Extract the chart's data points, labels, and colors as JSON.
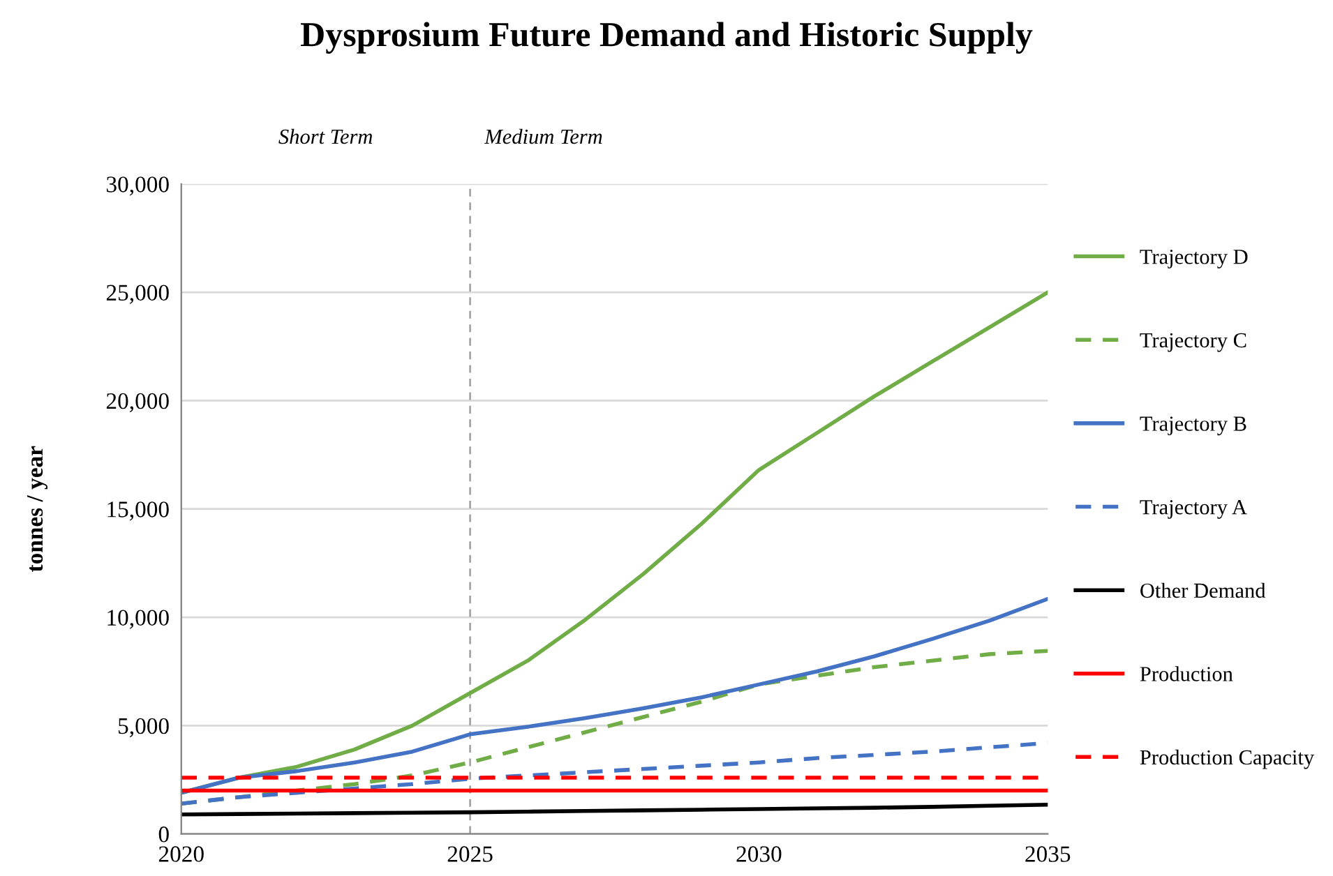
{
  "chart_data": {
    "type": "line",
    "title": "Dysprosium Future Demand and Historic Supply",
    "ylabel": "tonnes / year",
    "annotations": [
      "Short Term",
      "Medium Term"
    ],
    "x": [
      2020,
      2021,
      2022,
      2023,
      2024,
      2025,
      2026,
      2027,
      2028,
      2029,
      2030,
      2031,
      2032,
      2033,
      2034,
      2035
    ],
    "series": [
      {
        "name": "Trajectory D",
        "color": "#70ad47",
        "line_style": "solid",
        "values": [
          1900,
          2600,
          3100,
          3900,
          5000,
          6500,
          8000,
          9900,
          12000,
          14300,
          16800,
          18500,
          20200,
          21800,
          23400,
          25000
        ]
      },
      {
        "name": "Trajectory C",
        "color": "#70ad47",
        "line_style": "dashed",
        "values": [
          1400,
          1700,
          2000,
          2300,
          2700,
          3300,
          4000,
          4700,
          5400,
          6100,
          6900,
          7300,
          7700,
          8000,
          8300,
          8450
        ]
      },
      {
        "name": "Trajectory B",
        "color": "#4472c4",
        "line_style": "solid",
        "values": [
          1900,
          2600,
          2900,
          3300,
          3800,
          4600,
          4950,
          5350,
          5800,
          6300,
          6900,
          7500,
          8200,
          9000,
          9850,
          10850
        ]
      },
      {
        "name": "Trajectory A",
        "color": "#4472c4",
        "line_style": "dashed",
        "values": [
          1400,
          1700,
          1900,
          2100,
          2300,
          2550,
          2700,
          2850,
          3000,
          3150,
          3300,
          3500,
          3650,
          3800,
          4000,
          4200
        ]
      },
      {
        "name": "Other Demand",
        "color": "#000000",
        "line_style": "solid",
        "values": [
          900,
          920,
          940,
          960,
          980,
          1000,
          1030,
          1060,
          1090,
          1120,
          1150,
          1180,
          1210,
          1250,
          1300,
          1350
        ]
      },
      {
        "name": "Production",
        "color": "#ff0000",
        "line_style": "solid",
        "values": [
          2000,
          2000,
          2000,
          2000,
          2000,
          2000,
          2000,
          2000,
          2000,
          2000,
          2000,
          2000,
          2000,
          2000,
          2000,
          2000
        ]
      },
      {
        "name": "Production Capacity",
        "color": "#ff0000",
        "line_style": "dashed",
        "values": [
          2600,
          2600,
          2600,
          2600,
          2600,
          2600,
          2600,
          2600,
          2600,
          2600,
          2600,
          2600,
          2600,
          2600,
          2600,
          2600
        ]
      }
    ],
    "ref_lines": [
      {
        "axis": "x",
        "value": 2025,
        "label": null,
        "color": "#a6a6a6",
        "line_style": "dashed"
      }
    ],
    "xlim": [
      2020,
      2035
    ],
    "xticks": [
      2020,
      2025,
      2030,
      2035
    ],
    "ylim": [
      0,
      30000
    ],
    "yticks": [
      {
        "value": 0,
        "label": "0"
      },
      {
        "value": 5000,
        "label": "5,000"
      },
      {
        "value": 10000,
        "label": "10,000"
      },
      {
        "value": 15000,
        "label": "15,000"
      },
      {
        "value": 20000,
        "label": "20,000"
      },
      {
        "value": 25000,
        "label": "25,000"
      },
      {
        "value": 30000,
        "label": "30,000"
      }
    ],
    "grid": "y",
    "legend": "right",
    "marker": "none"
  }
}
